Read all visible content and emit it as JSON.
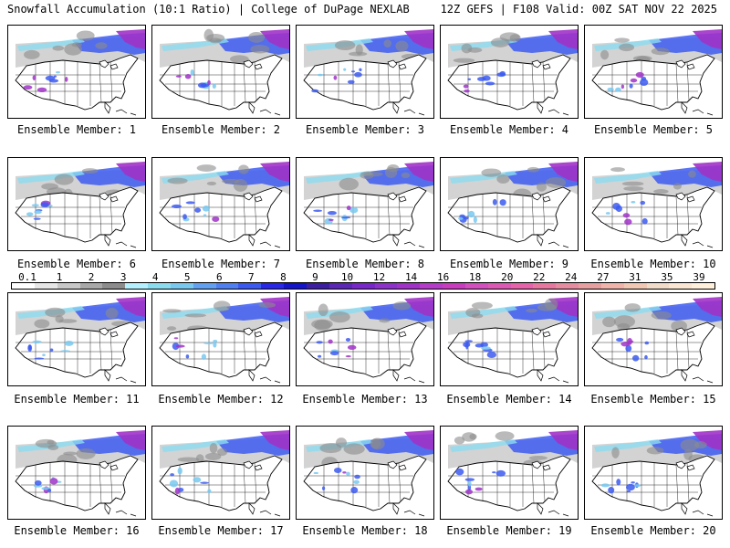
{
  "header": {
    "left": "Snowfall Accumulation (10:1 Ratio) | College of DuPage NEXLAB",
    "right": "12Z GEFS | F108 Valid: 00Z SAT NOV 22 2025"
  },
  "member_prefix": "Ensemble Member: ",
  "members": [
    1,
    2,
    3,
    4,
    5,
    6,
    7,
    8,
    9,
    10,
    11,
    12,
    13,
    14,
    15,
    16,
    17,
    18,
    19,
    20
  ],
  "colorbar": {
    "labels": [
      "0.1",
      "1",
      "2",
      "3",
      "4",
      "5",
      "6",
      "7",
      "8",
      "9",
      "10",
      "12",
      "14",
      "16",
      "18",
      "20",
      "22",
      "24",
      "27",
      "31",
      "35",
      "39"
    ],
    "colors": [
      "#ffffff",
      "#e6e6e6",
      "#c8c8c8",
      "#a8a8a8",
      "#8c8c8c",
      "#b4f0ff",
      "#8cdcf0",
      "#78c8f0",
      "#64a0f0",
      "#5080f0",
      "#3c5af0",
      "#2828e6",
      "#1414c8",
      "#3c1ea0",
      "#5a28b4",
      "#7828c8",
      "#8c32c8",
      "#a032c8",
      "#b43cc8",
      "#c83cbe",
      "#d250be",
      "#dc5ab4",
      "#e664aa",
      "#e678a0",
      "#e68ca0",
      "#e6a0a0",
      "#f0b4aa",
      "#f0c8b4",
      "#f0dcc8",
      "#fae6d2",
      "#fff0dc"
    ]
  }
}
